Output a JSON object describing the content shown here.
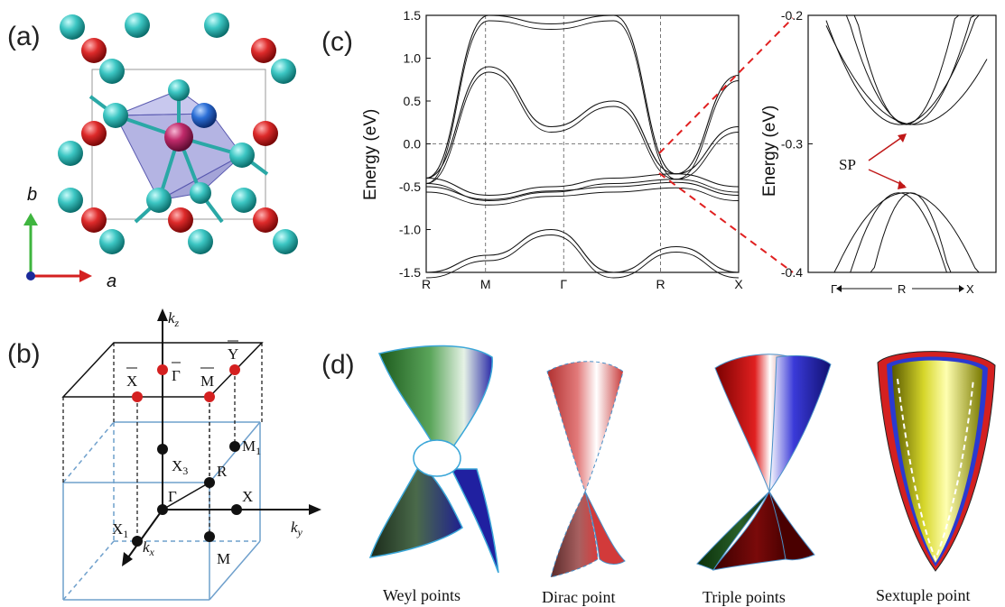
{
  "panels": {
    "a": {
      "label": "(a)",
      "axis_b": "b",
      "axis_a": "a",
      "colors": {
        "cyan": "#22b3b0",
        "red": "#d42020",
        "center": "#c02a6a",
        "blue": "#2c6fd6",
        "octahedron": "#6f6fc8"
      }
    },
    "b": {
      "label": "(b)",
      "points": {
        "kz": "k",
        "kz_sub": "z",
        "ky": "k",
        "ky_sub": "y",
        "kx": "k",
        "kx_sub": "x",
        "Gamma_bar": "Γ",
        "X_bar": "X",
        "M_bar": "M",
        "Y_bar": "Y",
        "X3": "X",
        "X3_sub": "3",
        "M1": "M",
        "M1_sub": "1",
        "R": "R",
        "Gamma": "Γ",
        "X": "X",
        "X1": "X",
        "X1_sub": "1",
        "M": "M"
      }
    },
    "c": {
      "label": "(c)",
      "ylabel": "Energy (eV)",
      "ylabel_inset": "Energy (eV)",
      "annotation": "SP",
      "inset_path": {
        "left": "Γ",
        "mid": "R",
        "right": "X"
      }
    },
    "d": {
      "label": "(d)",
      "captions": [
        "Weyl points",
        "Dirac point",
        "Triple points",
        "Sextuple point"
      ]
    }
  },
  "chart_data": [
    {
      "type": "line",
      "title": "",
      "xlabel": "",
      "ylabel": "Energy (eV)",
      "x_ticks": [
        "R",
        "M",
        "Γ",
        "R",
        "X"
      ],
      "y_ticks": [
        "1.5",
        "1.0",
        "0.5",
        "0.0",
        "-0.5",
        "-1.0",
        "-1.5"
      ],
      "ylim": [
        -1.5,
        1.5
      ],
      "grid": false,
      "series": [
        {
          "values": [
            -0.4,
            1.5,
            1.4,
            1.5,
            -0.35,
            0.2
          ]
        },
        {
          "values": [
            -0.4,
            0.9,
            0.2,
            0.5,
            -0.35,
            0.8
          ]
        },
        {
          "values": [
            -0.4,
            -0.6,
            -0.5,
            -0.4,
            -0.35,
            -0.5
          ]
        },
        {
          "values": [
            -0.5,
            -0.65,
            -0.55,
            -0.5,
            -0.45,
            -0.6
          ]
        },
        {
          "values": [
            -1.5,
            -1.3,
            -1.0,
            -1.5,
            -1.2,
            -1.5
          ]
        }
      ]
    },
    {
      "type": "line",
      "title": "",
      "xlabel": "",
      "ylabel": "Energy (eV)",
      "x_ticks": [
        "Γ",
        "R",
        "X"
      ],
      "y_ticks": [
        "-0.2",
        "-0.3",
        "-0.4"
      ],
      "ylim": [
        -0.4,
        -0.2
      ],
      "annotations": [
        "SP"
      ]
    }
  ]
}
